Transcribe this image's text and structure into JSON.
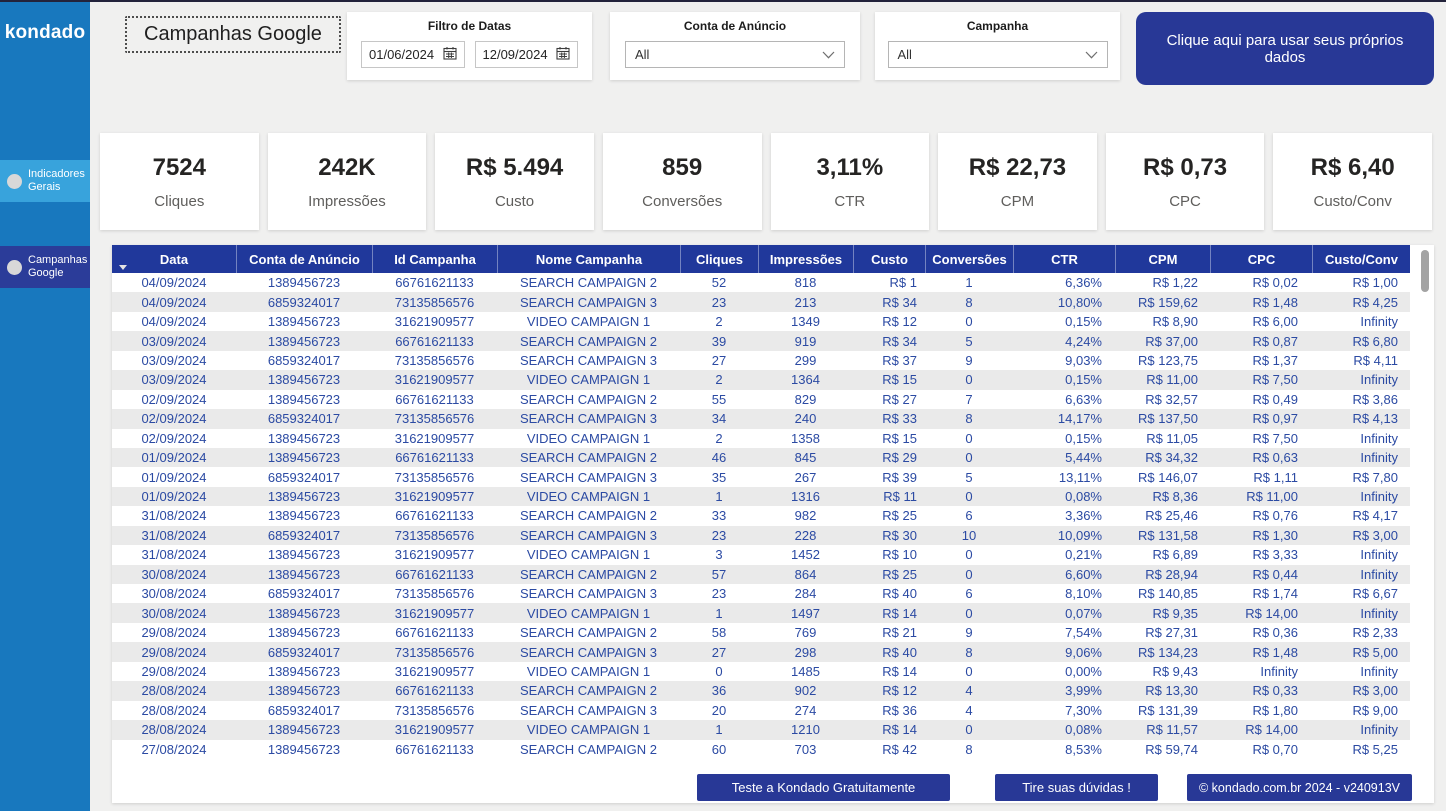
{
  "sidebar": {
    "logo": "kondado",
    "items": [
      {
        "label": "Indicadores Gerais"
      },
      {
        "label": "Campanhas Google"
      }
    ]
  },
  "header": {
    "title": "Campanhas Google",
    "date_filter": {
      "label": "Filtro de Datas",
      "start": "01/06/2024",
      "end": "12/09/2024"
    },
    "account_filter": {
      "label": "Conta de Anúncio",
      "value": "All"
    },
    "campaign_filter": {
      "label": "Campanha",
      "value": "All"
    },
    "cta_button": "Clique aqui para usar seus próprios dados"
  },
  "kpis": [
    {
      "value": "7524",
      "label": "Cliques"
    },
    {
      "value": "242K",
      "label": "Impressões"
    },
    {
      "value": "R$ 5.494",
      "label": "Custo"
    },
    {
      "value": "859",
      "label": "Conversões"
    },
    {
      "value": "3,11%",
      "label": "CTR"
    },
    {
      "value": "R$ 22,73",
      "label": "CPM"
    },
    {
      "value": "R$ 0,73",
      "label": "CPC"
    },
    {
      "value": "R$ 6,40",
      "label": "Custo/Conv"
    }
  ],
  "table": {
    "columns": [
      "Data",
      "Conta de Anúncio",
      "Id Campanha",
      "Nome Campanha",
      "Cliques",
      "Impressões",
      "Custo",
      "Conversões",
      "CTR",
      "CPM",
      "CPC",
      "Custo/Conv"
    ],
    "sorted_column": "Data",
    "sort_direction": "desc",
    "rows": [
      [
        "04/09/2024",
        "1389456723",
        "66761621133",
        "SEARCH CAMPAIGN 2",
        "52",
        "818",
        "R$ 1",
        "1",
        "6,36%",
        "R$ 1,22",
        "R$ 0,02",
        "R$ 1,00"
      ],
      [
        "04/09/2024",
        "6859324017",
        "73135856576",
        "SEARCH CAMPAIGN 3",
        "23",
        "213",
        "R$ 34",
        "8",
        "10,80%",
        "R$ 159,62",
        "R$ 1,48",
        "R$ 4,25"
      ],
      [
        "04/09/2024",
        "1389456723",
        "31621909577",
        "VIDEO CAMPAIGN 1",
        "2",
        "1349",
        "R$ 12",
        "0",
        "0,15%",
        "R$ 8,90",
        "R$ 6,00",
        "Infinity"
      ],
      [
        "03/09/2024",
        "1389456723",
        "66761621133",
        "SEARCH CAMPAIGN 2",
        "39",
        "919",
        "R$ 34",
        "5",
        "4,24%",
        "R$ 37,00",
        "R$ 0,87",
        "R$ 6,80"
      ],
      [
        "03/09/2024",
        "6859324017",
        "73135856576",
        "SEARCH CAMPAIGN 3",
        "27",
        "299",
        "R$ 37",
        "9",
        "9,03%",
        "R$ 123,75",
        "R$ 1,37",
        "R$ 4,11"
      ],
      [
        "03/09/2024",
        "1389456723",
        "31621909577",
        "VIDEO CAMPAIGN 1",
        "2",
        "1364",
        "R$ 15",
        "0",
        "0,15%",
        "R$ 11,00",
        "R$ 7,50",
        "Infinity"
      ],
      [
        "02/09/2024",
        "1389456723",
        "66761621133",
        "SEARCH CAMPAIGN 2",
        "55",
        "829",
        "R$ 27",
        "7",
        "6,63%",
        "R$ 32,57",
        "R$ 0,49",
        "R$ 3,86"
      ],
      [
        "02/09/2024",
        "6859324017",
        "73135856576",
        "SEARCH CAMPAIGN 3",
        "34",
        "240",
        "R$ 33",
        "8",
        "14,17%",
        "R$ 137,50",
        "R$ 0,97",
        "R$ 4,13"
      ],
      [
        "02/09/2024",
        "1389456723",
        "31621909577",
        "VIDEO CAMPAIGN 1",
        "2",
        "1358",
        "R$ 15",
        "0",
        "0,15%",
        "R$ 11,05",
        "R$ 7,50",
        "Infinity"
      ],
      [
        "01/09/2024",
        "1389456723",
        "66761621133",
        "SEARCH CAMPAIGN 2",
        "46",
        "845",
        "R$ 29",
        "0",
        "5,44%",
        "R$ 34,32",
        "R$ 0,63",
        "Infinity"
      ],
      [
        "01/09/2024",
        "6859324017",
        "73135856576",
        "SEARCH CAMPAIGN 3",
        "35",
        "267",
        "R$ 39",
        "5",
        "13,11%",
        "R$ 146,07",
        "R$ 1,11",
        "R$ 7,80"
      ],
      [
        "01/09/2024",
        "1389456723",
        "31621909577",
        "VIDEO CAMPAIGN 1",
        "1",
        "1316",
        "R$ 11",
        "0",
        "0,08%",
        "R$ 8,36",
        "R$ 11,00",
        "Infinity"
      ],
      [
        "31/08/2024",
        "1389456723",
        "66761621133",
        "SEARCH CAMPAIGN 2",
        "33",
        "982",
        "R$ 25",
        "6",
        "3,36%",
        "R$ 25,46",
        "R$ 0,76",
        "R$ 4,17"
      ],
      [
        "31/08/2024",
        "6859324017",
        "73135856576",
        "SEARCH CAMPAIGN 3",
        "23",
        "228",
        "R$ 30",
        "10",
        "10,09%",
        "R$ 131,58",
        "R$ 1,30",
        "R$ 3,00"
      ],
      [
        "31/08/2024",
        "1389456723",
        "31621909577",
        "VIDEO CAMPAIGN 1",
        "3",
        "1452",
        "R$ 10",
        "0",
        "0,21%",
        "R$ 6,89",
        "R$ 3,33",
        "Infinity"
      ],
      [
        "30/08/2024",
        "1389456723",
        "66761621133",
        "SEARCH CAMPAIGN 2",
        "57",
        "864",
        "R$ 25",
        "0",
        "6,60%",
        "R$ 28,94",
        "R$ 0,44",
        "Infinity"
      ],
      [
        "30/08/2024",
        "6859324017",
        "73135856576",
        "SEARCH CAMPAIGN 3",
        "23",
        "284",
        "R$ 40",
        "6",
        "8,10%",
        "R$ 140,85",
        "R$ 1,74",
        "R$ 6,67"
      ],
      [
        "30/08/2024",
        "1389456723",
        "31621909577",
        "VIDEO CAMPAIGN 1",
        "1",
        "1497",
        "R$ 14",
        "0",
        "0,07%",
        "R$ 9,35",
        "R$ 14,00",
        "Infinity"
      ],
      [
        "29/08/2024",
        "1389456723",
        "66761621133",
        "SEARCH CAMPAIGN 2",
        "58",
        "769",
        "R$ 21",
        "9",
        "7,54%",
        "R$ 27,31",
        "R$ 0,36",
        "R$ 2,33"
      ],
      [
        "29/08/2024",
        "6859324017",
        "73135856576",
        "SEARCH CAMPAIGN 3",
        "27",
        "298",
        "R$ 40",
        "8",
        "9,06%",
        "R$ 134,23",
        "R$ 1,48",
        "R$ 5,00"
      ],
      [
        "29/08/2024",
        "1389456723",
        "31621909577",
        "VIDEO CAMPAIGN 1",
        "0",
        "1485",
        "R$ 14",
        "0",
        "0,00%",
        "R$ 9,43",
        "Infinity",
        "Infinity"
      ],
      [
        "28/08/2024",
        "1389456723",
        "66761621133",
        "SEARCH CAMPAIGN 2",
        "36",
        "902",
        "R$ 12",
        "4",
        "3,99%",
        "R$ 13,30",
        "R$ 0,33",
        "R$ 3,00"
      ],
      [
        "28/08/2024",
        "6859324017",
        "73135856576",
        "SEARCH CAMPAIGN 3",
        "20",
        "274",
        "R$ 36",
        "4",
        "7,30%",
        "R$ 131,39",
        "R$ 1,80",
        "R$ 9,00"
      ],
      [
        "28/08/2024",
        "1389456723",
        "31621909577",
        "VIDEO CAMPAIGN 1",
        "1",
        "1210",
        "R$ 14",
        "0",
        "0,08%",
        "R$ 11,57",
        "R$ 14,00",
        "Infinity"
      ],
      [
        "27/08/2024",
        "1389456723",
        "66761621133",
        "SEARCH CAMPAIGN 2",
        "60",
        "703",
        "R$ 42",
        "8",
        "8,53%",
        "R$ 59,74",
        "R$ 0,70",
        "R$ 5,25"
      ]
    ]
  },
  "footer": {
    "test_button": "Teste a Kondado Gratuitamente",
    "doubts_button": "Tire suas dúvidas !",
    "copyright": "© kondado.com.br 2024 - v240913V"
  },
  "colors": {
    "sidebar_blue": "#1878be",
    "nav_highlight_blue": "#38a3dc",
    "nav_active_navy": "#2b3c99",
    "accent_navy": "#283896",
    "table_header_navy": "#20389b",
    "table_text_navy": "#2b4aa3",
    "row_alt_gray": "#eaeaea"
  }
}
